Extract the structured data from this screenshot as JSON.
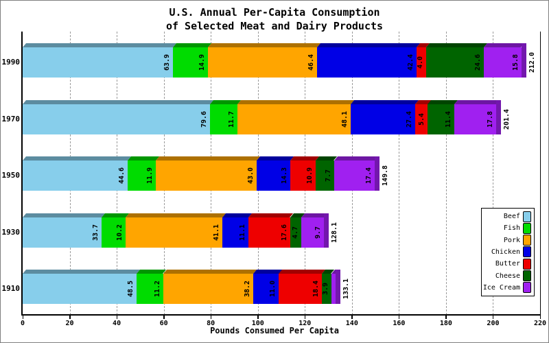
{
  "chart_data": {
    "type": "bar",
    "variant": "horizontal-stacked-3d",
    "title_lines": [
      "U.S. Annual Per-Capita Consumption",
      "of Selected Meat and Dairy Products"
    ],
    "xlabel": "Pounds Consumed Per Capita",
    "categories": [
      "1990",
      "1970",
      "1950",
      "1930",
      "1910"
    ],
    "series": [
      {
        "name": "Beef",
        "color": "#87CEEB",
        "values": [
          63.9,
          79.6,
          44.6,
          33.7,
          48.5
        ]
      },
      {
        "name": "Fish",
        "color": "#00DC00",
        "values": [
          14.9,
          11.7,
          11.9,
          10.2,
          11.2
        ]
      },
      {
        "name": "Pork",
        "color": "#FFA500",
        "values": [
          46.4,
          48.1,
          43.0,
          41.1,
          38.2
        ]
      },
      {
        "name": "Chicken",
        "color": "#0000E6",
        "values": [
          42.4,
          27.4,
          14.3,
          11.1,
          11.0
        ]
      },
      {
        "name": "Butter",
        "color": "#EE0000",
        "values": [
          4.0,
          5.4,
          10.9,
          17.6,
          18.4
        ]
      },
      {
        "name": "Cheese",
        "color": "#006400",
        "values": [
          24.6,
          11.4,
          7.7,
          4.7,
          3.9
        ]
      },
      {
        "name": "Ice Cream",
        "color": "#A020F0",
        "values": [
          15.8,
          17.8,
          17.4,
          9.7,
          1.9
        ]
      }
    ],
    "totals": [
      212.0,
      201.4,
      149.8,
      128.1,
      133.1
    ],
    "x_ticks": [
      0,
      20,
      40,
      60,
      80,
      100,
      120,
      140,
      160,
      180,
      200,
      220
    ],
    "xlim": [
      0,
      220
    ],
    "grid": "vertical-dashed",
    "legend": {
      "position": "right-lower",
      "entries": [
        "Beef",
        "Fish",
        "Pork",
        "Chicken",
        "Butter",
        "Cheese",
        "Ice Cream"
      ]
    }
  }
}
